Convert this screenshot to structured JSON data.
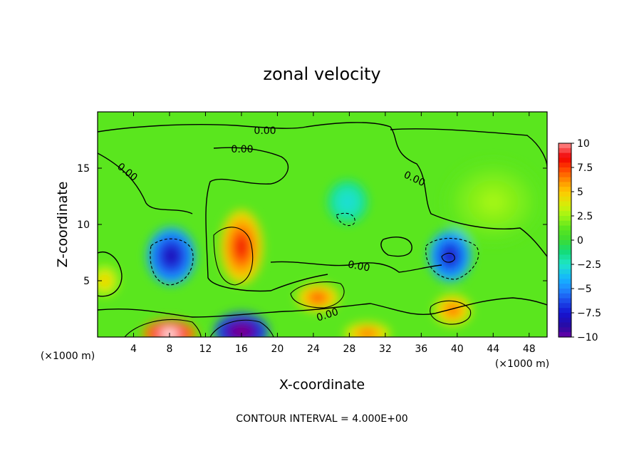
{
  "chart_data": {
    "type": "heatmap",
    "title": "zonal velocity",
    "xlabel": "X-coordinate",
    "ylabel": "Z-coordinate",
    "x_unit": "(×1000 m)",
    "x_unit_right": "(×1000 m)",
    "xlim": [
      0,
      50
    ],
    "ylim": [
      0,
      20
    ],
    "xticks": [
      "4",
      "8",
      "12",
      "16",
      "20",
      "24",
      "28",
      "32",
      "36",
      "40",
      "44",
      "48"
    ],
    "xtick_values": [
      4,
      8,
      12,
      16,
      20,
      24,
      28,
      32,
      36,
      40,
      44,
      48
    ],
    "yticks": [
      "5",
      "10",
      "15"
    ],
    "ytick_values": [
      5,
      10,
      15
    ],
    "colorbar": {
      "min": -10,
      "max": 10,
      "ticks": [
        "10",
        "7.5",
        "5",
        "2.5",
        "0",
        "−2.5",
        "−5",
        "−7.5",
        "−10"
      ],
      "tick_values": [
        10,
        7.5,
        5,
        2.5,
        0,
        -2.5,
        -5,
        -7.5,
        -10
      ]
    },
    "contour_labels": [
      "0.00",
      "0.00",
      "0.00",
      "0.00",
      "0.00",
      "0.00"
    ],
    "contour_interval": "CONTOUR INTERVAL = 4.000E+00",
    "features": [
      {
        "x": 8.2,
        "z": 7.2,
        "value": -8.5
      },
      {
        "x": 16.0,
        "z": 8.0,
        "value": 8.5
      },
      {
        "x": 24.5,
        "z": 3.5,
        "value": 7.5
      },
      {
        "x": 39.2,
        "z": 7.2,
        "value": -8.0
      },
      {
        "x": 39.5,
        "z": 2.4,
        "value": 7.0
      },
      {
        "x": 8.0,
        "z": 0.3,
        "value": 12.0
      },
      {
        "x": 16.0,
        "z": 0.5,
        "value": -12.0
      },
      {
        "x": 0.8,
        "z": 5.0,
        "value": 5.0
      },
      {
        "x": 30.0,
        "z": 0.3,
        "value": 7.0
      },
      {
        "x": 27.8,
        "z": 12.0,
        "value": -3.0
      },
      {
        "x": 44.0,
        "z": 12.0,
        "value": 2.5
      }
    ]
  }
}
